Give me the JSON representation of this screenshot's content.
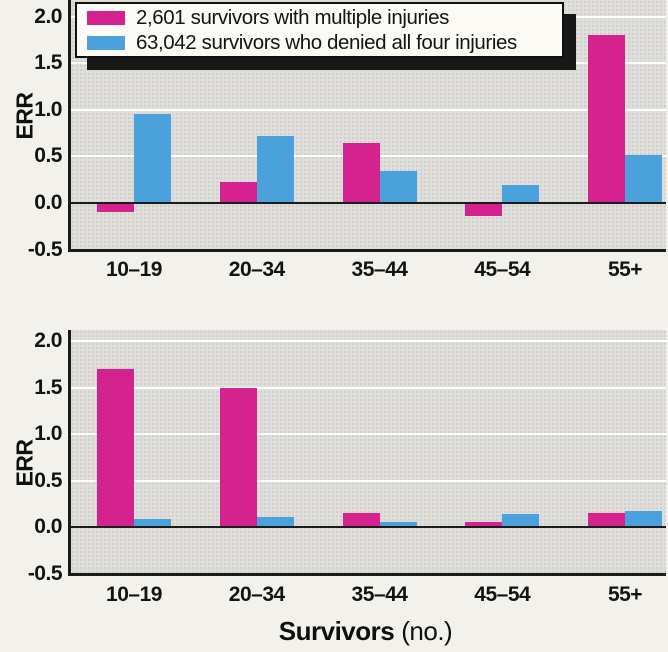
{
  "figure": {
    "ylabel": "ERR",
    "xlabel_bold": "Survivors",
    "xlabel_rest": "(no.)"
  },
  "colors": {
    "pink": "#D4228F",
    "blue": "#4AA1DB",
    "axis": "#1B1B1B",
    "plot_background": "#DFDEDB"
  },
  "chart_data": [
    {
      "type": "bar",
      "title": "",
      "categories": [
        "10–19",
        "20–34",
        "35–44",
        "45–54",
        "55+"
      ],
      "series": [
        {
          "name": "2,601 survivors with multiple injuries",
          "color": "#D4228F",
          "values": [
            -0.1,
            0.23,
            0.64,
            -0.14,
            1.8
          ]
        },
        {
          "name": "63,042 survivors who denied all four injuries",
          "color": "#4AA1DB",
          "values": [
            0.95,
            0.72,
            0.34,
            0.19,
            0.52
          ]
        }
      ],
      "ylabel": "ERR",
      "xlabel": "",
      "ylim": [
        -0.5,
        2.0
      ],
      "yticks": [
        "2.0",
        "1.5",
        "1.0",
        "0.5",
        "0.0",
        "-0.5"
      ],
      "grid": "horizontal-white",
      "legend_position": "top-left"
    },
    {
      "type": "bar",
      "title": "",
      "categories": [
        "10–19",
        "20–34",
        "35–44",
        "45–54",
        "55+"
      ],
      "series": [
        {
          "name": "2,601 survivors with multiple injuries",
          "color": "#D4228F",
          "values": [
            1.7,
            1.5,
            0.15,
            0.05,
            0.15
          ]
        },
        {
          "name": "63,042 survivors who denied all four injuries",
          "color": "#4AA1DB",
          "values": [
            0.09,
            0.11,
            0.05,
            0.14,
            0.17
          ]
        }
      ],
      "ylabel": "ERR",
      "xlabel": "Survivors (no.)",
      "ylim": [
        -0.5,
        2.0
      ],
      "yticks": [
        "2.0",
        "1.5",
        "1.0",
        "0.5",
        "0.0",
        "-0.5"
      ],
      "grid": "horizontal-white",
      "legend_position": "none"
    }
  ]
}
